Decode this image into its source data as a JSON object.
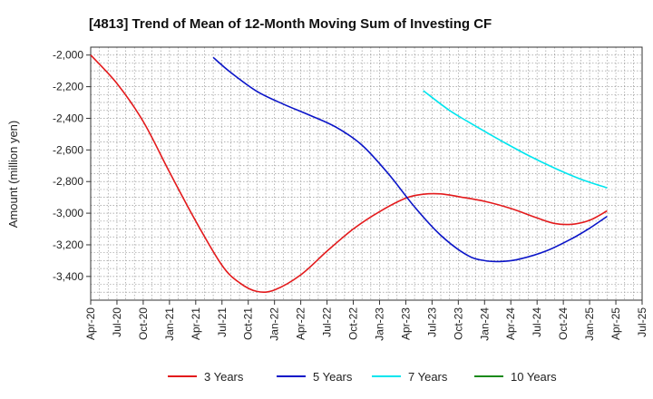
{
  "chart_data": {
    "type": "line",
    "title": "[4813]  Trend of Mean of 12-Month Moving Sum of Investing CF",
    "xlabel": "",
    "ylabel": "Amount (million yen)",
    "ylim": [
      -3550,
      -1950
    ],
    "yticks": [
      -2000,
      -2200,
      -2400,
      -2600,
      -2800,
      -3000,
      -3200,
      -3400
    ],
    "ytick_labels": [
      "-2,000",
      "-2,200",
      "-2,400",
      "-2,600",
      "-2,800",
      "-3,000",
      "-3,200",
      "-3,400"
    ],
    "x_range": [
      0,
      63
    ],
    "xtick_labels": [
      "Apr-20",
      "Jul-20",
      "Oct-20",
      "Jan-21",
      "Apr-21",
      "Jul-21",
      "Oct-21",
      "Jan-22",
      "Apr-22",
      "Jul-22",
      "Oct-22",
      "Jan-23",
      "Apr-23",
      "Jul-23",
      "Oct-23",
      "Jan-24",
      "Apr-24",
      "Jul-24",
      "Oct-24",
      "Jan-25",
      "Apr-25",
      "Jul-25"
    ],
    "x_unit": "months since Apr-20",
    "grid": true,
    "legend_position": "bottom",
    "series": [
      {
        "name": "3 Years",
        "color": "#e31a1c",
        "points": [
          [
            0,
            -2000
          ],
          [
            3,
            -2180
          ],
          [
            6,
            -2420
          ],
          [
            9,
            -2740
          ],
          [
            12,
            -3050
          ],
          [
            15,
            -3330
          ],
          [
            17,
            -3440
          ],
          [
            19,
            -3495
          ],
          [
            21,
            -3485
          ],
          [
            24,
            -3390
          ],
          [
            27,
            -3240
          ],
          [
            30,
            -3100
          ],
          [
            33,
            -2990
          ],
          [
            36,
            -2905
          ],
          [
            38,
            -2880
          ],
          [
            40,
            -2878
          ],
          [
            42,
            -2895
          ],
          [
            45,
            -2925
          ],
          [
            48,
            -2970
          ],
          [
            51,
            -3030
          ],
          [
            53,
            -3065
          ],
          [
            55,
            -3070
          ],
          [
            57,
            -3045
          ],
          [
            59,
            -2985
          ]
        ]
      },
      {
        "name": "5 Years",
        "color": "#0a14c8",
        "points": [
          [
            14,
            -2015
          ],
          [
            16,
            -2110
          ],
          [
            19,
            -2230
          ],
          [
            22,
            -2310
          ],
          [
            25,
            -2380
          ],
          [
            28,
            -2455
          ],
          [
            31,
            -2570
          ],
          [
            34,
            -2750
          ],
          [
            37,
            -2960
          ],
          [
            40,
            -3140
          ],
          [
            43,
            -3265
          ],
          [
            45,
            -3300
          ],
          [
            47,
            -3305
          ],
          [
            49,
            -3290
          ],
          [
            52,
            -3240
          ],
          [
            55,
            -3160
          ],
          [
            57,
            -3095
          ],
          [
            59,
            -3020
          ]
        ]
      },
      {
        "name": "7 Years",
        "color": "#00e5ee",
        "points": [
          [
            38,
            -2225
          ],
          [
            41,
            -2350
          ],
          [
            44,
            -2450
          ],
          [
            47,
            -2545
          ],
          [
            50,
            -2635
          ],
          [
            53,
            -2715
          ],
          [
            56,
            -2785
          ],
          [
            59,
            -2840
          ]
        ]
      },
      {
        "name": "10 Years",
        "color": "#1a8a1a",
        "points": []
      }
    ]
  }
}
